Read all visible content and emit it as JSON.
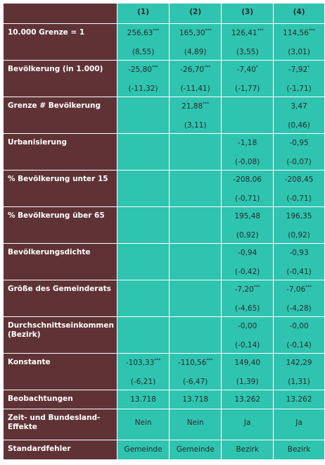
{
  "columns": [
    "(1)",
    "(2)",
    "(3)",
    "(4)"
  ],
  "rows": [
    {
      "label": "10.000 Grenze = 1",
      "cells": [
        {
          "coef": "256,63",
          "stars": "***",
          "se": "(8,55)"
        },
        {
          "coef": "165,30",
          "stars": "***",
          "se": "(4,89)"
        },
        {
          "coef": "126,41",
          "stars": "***",
          "se": "(3,55)"
        },
        {
          "coef": "114,56",
          "stars": "***",
          "se": "(3,01)"
        }
      ]
    },
    {
      "label": "Bevölkerung (in 1.000)",
      "cells": [
        {
          "coef": "-25,80",
          "stars": "***",
          "se": "(-11,32)"
        },
        {
          "coef": "-26,70",
          "stars": "***",
          "se": "(-11,41)"
        },
        {
          "coef": "-7,40",
          "stars": "*",
          "se": "(-1,77)"
        },
        {
          "coef": "-7,92",
          "stars": "*",
          "se": "(-1,71)"
        }
      ]
    },
    {
      "label": "Grenze # Bevölkerung",
      "cells": [
        {
          "coef": "",
          "stars": "",
          "se": ""
        },
        {
          "coef": "21,88",
          "stars": "***",
          "se": "(3,11)"
        },
        {
          "coef": "",
          "stars": "",
          "se": ""
        },
        {
          "coef": "3,47",
          "stars": "",
          "se": "(0,46)"
        }
      ]
    },
    {
      "label": "Urbanisierung",
      "cells": [
        {
          "coef": "",
          "stars": "",
          "se": ""
        },
        {
          "coef": "",
          "stars": "",
          "se": ""
        },
        {
          "coef": "-1,18",
          "stars": "",
          "se": "(-0,08)"
        },
        {
          "coef": "-0,95",
          "stars": "",
          "se": "(-0,07)"
        }
      ]
    },
    {
      "label": "% Bevölkerung unter 15",
      "cells": [
        {
          "coef": "",
          "stars": "",
          "se": ""
        },
        {
          "coef": "",
          "stars": "",
          "se": ""
        },
        {
          "coef": "-208,06",
          "stars": "",
          "se": "(-0,71)"
        },
        {
          "coef": "-208,45",
          "stars": "",
          "se": "(-0,71)"
        }
      ]
    },
    {
      "label": "% Bevölkerung über 65",
      "cells": [
        {
          "coef": "",
          "stars": "",
          "se": ""
        },
        {
          "coef": "",
          "stars": "",
          "se": ""
        },
        {
          "coef": "195,48",
          "stars": "",
          "se": "(0,92)"
        },
        {
          "coef": "196,35",
          "stars": "",
          "se": "(0,92)"
        }
      ]
    },
    {
      "label": "Bevölkerungsdichte",
      "cells": [
        {
          "coef": "",
          "stars": "",
          "se": ""
        },
        {
          "coef": "",
          "stars": "",
          "se": ""
        },
        {
          "coef": "-0,94",
          "stars": "",
          "se": "(-0,42)"
        },
        {
          "coef": "-0,93",
          "stars": "",
          "se": "(-0,41)"
        }
      ]
    },
    {
      "label": "Größe des Gemeinderats",
      "cells": [
        {
          "coef": "",
          "stars": "",
          "se": ""
        },
        {
          "coef": "",
          "stars": "",
          "se": ""
        },
        {
          "coef": "-7,20",
          "stars": "***",
          "se": "(-4,65)"
        },
        {
          "coef": "-7,06",
          "stars": "***",
          "se": "(-4,28)"
        }
      ]
    },
    {
      "label": "Durchschnittseinkommen (Bezirk)",
      "cells": [
        {
          "coef": "",
          "stars": "",
          "se": ""
        },
        {
          "coef": "",
          "stars": "",
          "se": ""
        },
        {
          "coef": "-0,00",
          "stars": "",
          "se": "(-0,14)"
        },
        {
          "coef": "-0,00",
          "stars": "",
          "se": "(-0,14)"
        }
      ]
    },
    {
      "label": "Konstante",
      "cells": [
        {
          "coef": "-103,33",
          "stars": "***",
          "se": "(-6,21)"
        },
        {
          "coef": "-110,56",
          "stars": "***",
          "se": "(-6,47)"
        },
        {
          "coef": "149,40",
          "stars": "",
          "se": "(1,39)"
        },
        {
          "coef": "142,29",
          "stars": "",
          "se": "(1,31)"
        }
      ]
    }
  ],
  "footer": [
    {
      "label": "Beobachtungen",
      "values": [
        "13.718",
        "13.718",
        "13.262",
        "13.262"
      ]
    },
    {
      "label": "Zeit- und Bundesland-Effekte",
      "values": [
        "Nein",
        "Nein",
        "Ja",
        "Ja"
      ]
    },
    {
      "label": "Standardfehler",
      "values": [
        "Gemeinde",
        "Gemeinde",
        "Bezirk",
        "Bezirk"
      ]
    }
  ],
  "colors": {
    "label_bg": "#5f3336",
    "value_bg": "#2ec4b0",
    "label_text": "#ffffff",
    "value_text": "#2b2b2b"
  }
}
